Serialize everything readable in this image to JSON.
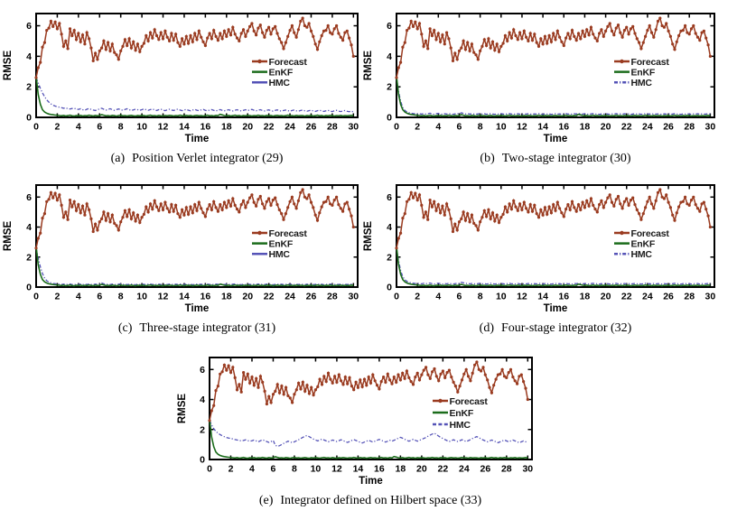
{
  "figure": {
    "background": "#ffffff"
  },
  "chart_data": {
    "type": "line",
    "xlabel": "Time",
    "ylabel": "RMSE",
    "xlim": [
      0,
      30.4
    ],
    "ylim": [
      0,
      6.8
    ],
    "xticks": [
      0,
      2,
      4,
      6,
      8,
      10,
      12,
      14,
      16,
      18,
      20,
      22,
      24,
      26,
      28,
      30
    ],
    "yticks": [
      0,
      2,
      4,
      6
    ],
    "x_step": 0.2,
    "legend": [
      "Forecast",
      "EnKF",
      "HMC"
    ],
    "colors": {
      "forecast": "#9A3B20",
      "enkf": "#1B6C1B",
      "hmc": "#5553B7",
      "axis": "#000000",
      "text": "#1a1a1a"
    },
    "shared": {
      "forecast": [
        2.6,
        3.25,
        3.6,
        4.6,
        4.9,
        5.7,
        5.85,
        6.3,
        5.95,
        6.25,
        5.8,
        6.15,
        5.45,
        4.65,
        5.0,
        4.5,
        5.8,
        5.35,
        5.7,
        5.1,
        5.5,
        4.95,
        5.4,
        4.8,
        5.55,
        5.15,
        4.55,
        3.7,
        4.2,
        3.8,
        4.35,
        4.55,
        5.0,
        4.45,
        4.9,
        4.35,
        4.8,
        4.25,
        4.1,
        3.8,
        4.35,
        4.65,
        5.1,
        4.7,
        5.15,
        4.55,
        4.95,
        4.4,
        4.8,
        4.3,
        4.65,
        4.85,
        5.35,
        5.0,
        5.55,
        5.2,
        5.75,
        5.35,
        5.1,
        5.55,
        5.15,
        5.65,
        5.25,
        5.0,
        5.5,
        5.05,
        5.45,
        4.9,
        4.65,
        5.15,
        4.8,
        5.3,
        4.85,
        5.35,
        4.95,
        5.5,
        5.1,
        5.65,
        5.25,
        4.95,
        4.7,
        5.2,
        5.5,
        5.15,
        5.7,
        5.3,
        5.05,
        5.5,
        5.15,
        5.65,
        5.3,
        5.75,
        5.4,
        5.9,
        5.45,
        5.2,
        5.0,
        5.5,
        5.75,
        5.3,
        5.65,
        5.95,
        6.15,
        5.65,
        5.4,
        5.85,
        6.05,
        5.55,
        5.25,
        5.7,
        5.9,
        5.45,
        5.8,
        5.95,
        5.5,
        5.15,
        4.9,
        4.5,
        4.9,
        5.3,
        5.7,
        6.0,
        5.55,
        5.25,
        5.75,
        6.3,
        6.5,
        6.0,
        5.9,
        6.15,
        5.65,
        5.3,
        4.8,
        4.45,
        4.95,
        5.35,
        5.65,
        5.7,
        6.0,
        5.55,
        5.45,
        5.8,
        6.0,
        5.5,
        5.25,
        5.05,
        5.55,
        5.65,
        5.2,
        4.75,
        4.0
      ],
      "enkf": [
        2.7,
        1.5,
        0.85,
        0.5,
        0.35,
        0.27,
        0.22,
        0.19,
        0.17,
        0.15,
        0.14,
        0.12,
        0.1,
        0.13,
        0.09,
        0.11,
        0.14,
        0.1,
        0.08,
        0.12,
        0.1,
        0.13,
        0.09,
        0.12,
        0.1,
        0.14,
        0.11,
        0.09,
        0.13,
        0.1,
        0.12,
        0.18,
        0.14,
        0.1,
        0.12,
        0.09,
        0.13,
        0.11,
        0.08,
        0.12,
        0.14,
        0.1,
        0.12,
        0.09,
        0.11,
        0.13,
        0.1,
        0.08,
        0.12,
        0.1,
        0.13,
        0.11,
        0.09,
        0.12,
        0.14,
        0.1,
        0.12,
        0.09,
        0.13,
        0.1,
        0.08,
        0.12,
        0.1,
        0.13,
        0.11,
        0.09,
        0.12,
        0.1,
        0.14,
        0.11,
        0.09,
        0.13,
        0.1,
        0.12,
        0.08,
        0.11,
        0.13,
        0.1,
        0.12,
        0.09,
        0.11,
        0.14,
        0.1,
        0.12,
        0.09,
        0.13,
        0.11,
        0.2,
        0.16,
        0.12,
        0.1,
        0.13,
        0.09,
        0.11,
        0.14,
        0.1,
        0.12,
        0.08,
        0.12,
        0.1,
        0.13,
        0.11,
        0.09,
        0.12,
        0.1,
        0.14,
        0.1,
        0.12,
        0.09,
        0.13,
        0.1,
        0.12,
        0.08,
        0.11,
        0.13,
        0.1,
        0.12,
        0.09,
        0.11,
        0.14,
        0.1,
        0.12,
        0.09,
        0.13,
        0.1,
        0.12,
        0.11,
        0.08,
        0.12,
        0.1,
        0.13,
        0.09,
        0.11,
        0.14,
        0.1,
        0.12,
        0.08,
        0.12,
        0.1,
        0.13,
        0.11,
        0.09,
        0.12,
        0.1,
        0.13,
        0.09,
        0.12,
        0.1,
        0.11,
        0.13,
        0.1
      ]
    },
    "panels": [
      {
        "id": "a",
        "caption_label": "(a)",
        "caption_text": "Position Verlet integrator (29)",
        "legend_hmc_style": "solid",
        "hmc": [
          2.6,
          2.25,
          1.9,
          1.6,
          1.35,
          1.15,
          1.0,
          0.88,
          0.8,
          0.74,
          0.7,
          0.66,
          0.63,
          0.6,
          0.62,
          0.57,
          0.55,
          0.58,
          0.6,
          0.54,
          0.52,
          0.56,
          0.5,
          0.47,
          0.53,
          0.58,
          0.52,
          0.48,
          0.45,
          0.5,
          0.55,
          0.6,
          0.53,
          0.48,
          0.52,
          0.57,
          0.5,
          0.46,
          0.51,
          0.55,
          0.5,
          0.46,
          0.52,
          0.56,
          0.5,
          0.45,
          0.49,
          0.54,
          0.5,
          0.46,
          0.5,
          0.55,
          0.5,
          0.46,
          0.51,
          0.55,
          0.49,
          0.45,
          0.5,
          0.53,
          0.48,
          0.44,
          0.49,
          0.53,
          0.48,
          0.45,
          0.5,
          0.54,
          0.48,
          0.44,
          0.48,
          0.52,
          0.47,
          0.43,
          0.48,
          0.52,
          0.47,
          0.44,
          0.49,
          0.52,
          0.46,
          0.43,
          0.48,
          0.51,
          0.46,
          0.42,
          0.47,
          0.51,
          0.46,
          0.43,
          0.47,
          0.5,
          0.45,
          0.42,
          0.47,
          0.5,
          0.45,
          0.42,
          0.46,
          0.5,
          0.45,
          0.48,
          0.52,
          0.47,
          0.43,
          0.47,
          0.5,
          0.45,
          0.42,
          0.46,
          0.49,
          0.44,
          0.41,
          0.46,
          0.49,
          0.44,
          0.41,
          0.45,
          0.48,
          0.44,
          0.41,
          0.45,
          0.48,
          0.43,
          0.4,
          0.45,
          0.48,
          0.43,
          0.4,
          0.44,
          0.47,
          0.42,
          0.39,
          0.44,
          0.47,
          0.42,
          0.39,
          0.43,
          0.46,
          0.41,
          0.38,
          0.43,
          0.46,
          0.41,
          0.38,
          0.42,
          0.45,
          0.4,
          0.37,
          0.41,
          0.35
        ]
      },
      {
        "id": "b",
        "caption_label": "(b)",
        "caption_text": "Two-stage integrator (30)",
        "legend_hmc_style": "dashdot",
        "hmc": [
          2.6,
          1.7,
          1.05,
          0.65,
          0.45,
          0.36,
          0.3,
          0.27,
          0.25,
          0.24,
          0.23,
          0.24,
          0.21,
          0.25,
          0.22,
          0.24,
          0.27,
          0.23,
          0.2,
          0.24,
          0.26,
          0.22,
          0.2,
          0.24,
          0.21,
          0.25,
          0.22,
          0.2,
          0.23,
          0.26,
          0.22,
          0.3,
          0.26,
          0.22,
          0.25,
          0.21,
          0.24,
          0.22,
          0.2,
          0.23,
          0.25,
          0.21,
          0.24,
          0.2,
          0.23,
          0.25,
          0.22,
          0.2,
          0.23,
          0.21,
          0.24,
          0.22,
          0.2,
          0.23,
          0.25,
          0.21,
          0.23,
          0.2,
          0.24,
          0.21,
          0.19,
          0.23,
          0.21,
          0.24,
          0.22,
          0.2,
          0.23,
          0.21,
          0.25,
          0.22,
          0.2,
          0.24,
          0.21,
          0.23,
          0.19,
          0.22,
          0.24,
          0.21,
          0.23,
          0.2,
          0.22,
          0.25,
          0.21,
          0.23,
          0.2,
          0.24,
          0.22,
          0.26,
          0.23,
          0.21,
          0.24,
          0.22,
          0.2,
          0.23,
          0.25,
          0.21,
          0.23,
          0.19,
          0.23,
          0.21,
          0.24,
          0.22,
          0.2,
          0.23,
          0.21,
          0.25,
          0.21,
          0.23,
          0.2,
          0.24,
          0.21,
          0.23,
          0.19,
          0.22,
          0.24,
          0.21,
          0.23,
          0.2,
          0.22,
          0.25,
          0.21,
          0.23,
          0.2,
          0.24,
          0.21,
          0.23,
          0.22,
          0.19,
          0.23,
          0.21,
          0.24,
          0.2,
          0.22,
          0.25,
          0.21,
          0.23,
          0.19,
          0.23,
          0.21,
          0.24,
          0.22,
          0.2,
          0.23,
          0.21,
          0.24,
          0.2,
          0.23,
          0.21,
          0.22,
          0.24,
          0.21
        ]
      },
      {
        "id": "c",
        "caption_label": "(c)",
        "caption_text": "Three-stage integrator (31)",
        "legend_hmc_style": "solid",
        "hmc": [
          2.6,
          1.95,
          1.35,
          0.9,
          0.6,
          0.43,
          0.33,
          0.28,
          0.24,
          0.22,
          0.2,
          0.19,
          0.17,
          0.2,
          0.16,
          0.18,
          0.21,
          0.17,
          0.15,
          0.19,
          0.17,
          0.2,
          0.16,
          0.19,
          0.17,
          0.21,
          0.18,
          0.16,
          0.2,
          0.17,
          0.19,
          0.27,
          0.22,
          0.17,
          0.19,
          0.16,
          0.2,
          0.18,
          0.15,
          0.19,
          0.21,
          0.17,
          0.19,
          0.16,
          0.18,
          0.2,
          0.17,
          0.15,
          0.19,
          0.17,
          0.2,
          0.18,
          0.16,
          0.19,
          0.21,
          0.17,
          0.19,
          0.16,
          0.2,
          0.17,
          0.15,
          0.19,
          0.17,
          0.2,
          0.18,
          0.16,
          0.19,
          0.17,
          0.21,
          0.18,
          0.16,
          0.2,
          0.17,
          0.19,
          0.15,
          0.18,
          0.2,
          0.17,
          0.19,
          0.16,
          0.18,
          0.21,
          0.17,
          0.19,
          0.16,
          0.2,
          0.18,
          0.22,
          0.19,
          0.17,
          0.2,
          0.18,
          0.16,
          0.19,
          0.21,
          0.17,
          0.19,
          0.15,
          0.19,
          0.17,
          0.2,
          0.18,
          0.16,
          0.19,
          0.17,
          0.21,
          0.17,
          0.19,
          0.16,
          0.2,
          0.17,
          0.19,
          0.15,
          0.18,
          0.2,
          0.17,
          0.19,
          0.16,
          0.18,
          0.21,
          0.17,
          0.19,
          0.16,
          0.2,
          0.17,
          0.19,
          0.18,
          0.15,
          0.19,
          0.17,
          0.2,
          0.16,
          0.18,
          0.21,
          0.17,
          0.19,
          0.15,
          0.19,
          0.17,
          0.2,
          0.18,
          0.16,
          0.19,
          0.17,
          0.2,
          0.16,
          0.19,
          0.17,
          0.18,
          0.2,
          0.17
        ]
      },
      {
        "id": "d",
        "caption_label": "(d)",
        "caption_text": "Four-stage integrator (32)",
        "legend_hmc_style": "dashdot",
        "hmc": [
          2.6,
          1.75,
          1.1,
          0.7,
          0.48,
          0.38,
          0.32,
          0.28,
          0.26,
          0.24,
          0.23,
          0.24,
          0.21,
          0.25,
          0.22,
          0.24,
          0.27,
          0.23,
          0.2,
          0.24,
          0.26,
          0.22,
          0.2,
          0.24,
          0.21,
          0.25,
          0.22,
          0.2,
          0.23,
          0.26,
          0.22,
          0.32,
          0.28,
          0.23,
          0.25,
          0.21,
          0.24,
          0.22,
          0.2,
          0.23,
          0.25,
          0.21,
          0.24,
          0.2,
          0.23,
          0.25,
          0.22,
          0.2,
          0.23,
          0.21,
          0.24,
          0.22,
          0.2,
          0.23,
          0.25,
          0.21,
          0.23,
          0.2,
          0.24,
          0.21,
          0.19,
          0.23,
          0.21,
          0.24,
          0.22,
          0.2,
          0.23,
          0.21,
          0.25,
          0.22,
          0.2,
          0.24,
          0.21,
          0.23,
          0.19,
          0.22,
          0.24,
          0.21,
          0.23,
          0.2,
          0.22,
          0.25,
          0.21,
          0.23,
          0.2,
          0.24,
          0.22,
          0.26,
          0.23,
          0.21,
          0.24,
          0.22,
          0.2,
          0.23,
          0.25,
          0.21,
          0.23,
          0.19,
          0.23,
          0.21,
          0.24,
          0.22,
          0.2,
          0.23,
          0.21,
          0.25,
          0.21,
          0.23,
          0.2,
          0.24,
          0.21,
          0.23,
          0.19,
          0.22,
          0.24,
          0.21,
          0.23,
          0.2,
          0.22,
          0.25,
          0.21,
          0.23,
          0.2,
          0.24,
          0.21,
          0.23,
          0.22,
          0.19,
          0.23,
          0.21,
          0.24,
          0.2,
          0.22,
          0.25,
          0.21,
          0.23,
          0.19,
          0.23,
          0.21,
          0.24,
          0.22,
          0.2,
          0.23,
          0.21,
          0.24,
          0.2,
          0.23,
          0.21,
          0.22,
          0.24,
          0.21
        ]
      },
      {
        "id": "e",
        "caption_label": "(e)",
        "caption_text": "Integrator defined on Hilbert space (33)",
        "legend_hmc_style": "dashed",
        "hmc": [
          2.6,
          2.3,
          2.05,
          1.88,
          1.75,
          1.66,
          1.58,
          1.52,
          1.47,
          1.43,
          1.4,
          1.37,
          1.33,
          1.3,
          1.27,
          1.24,
          1.27,
          1.31,
          1.26,
          1.22,
          1.25,
          1.3,
          1.24,
          1.18,
          1.25,
          1.32,
          1.26,
          1.2,
          1.14,
          1.2,
          1.27,
          0.95,
          0.88,
          0.92,
          1.0,
          1.08,
          1.15,
          1.22,
          1.18,
          1.12,
          1.18,
          1.25,
          1.32,
          1.4,
          1.48,
          1.55,
          1.6,
          1.52,
          1.44,
          1.36,
          1.3,
          1.24,
          1.3,
          1.36,
          1.3,
          1.24,
          1.18,
          1.24,
          1.3,
          1.25,
          1.2,
          1.26,
          1.32,
          1.26,
          1.2,
          1.14,
          1.2,
          1.27,
          1.33,
          1.27,
          1.21,
          1.15,
          1.1,
          1.16,
          1.22,
          1.28,
          1.22,
          1.16,
          1.22,
          1.28,
          1.34,
          1.28,
          1.22,
          1.16,
          1.22,
          1.28,
          1.22,
          1.28,
          1.35,
          1.42,
          1.48,
          1.42,
          1.35,
          1.28,
          1.22,
          1.28,
          1.35,
          1.28,
          1.22,
          1.28,
          1.34,
          1.4,
          1.47,
          1.55,
          1.63,
          1.7,
          1.75,
          1.66,
          1.56,
          1.47,
          1.4,
          1.33,
          1.26,
          1.2,
          1.26,
          1.32,
          1.26,
          1.2,
          1.26,
          1.32,
          1.26,
          1.2,
          1.26,
          1.33,
          1.4,
          1.47,
          1.53,
          1.45,
          1.37,
          1.3,
          1.24,
          1.18,
          1.24,
          1.3,
          1.24,
          1.18,
          1.12,
          1.18,
          1.24,
          1.3,
          1.24,
          1.18,
          1.24,
          1.3,
          1.24,
          1.18,
          1.12,
          1.18,
          1.24,
          1.18,
          1.22
        ]
      }
    ]
  }
}
